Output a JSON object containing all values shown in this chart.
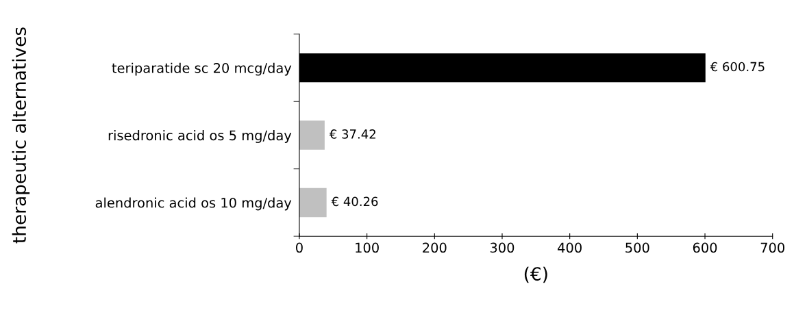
{
  "chart_data": {
    "type": "bar",
    "orientation": "horizontal",
    "xlabel": "(€)",
    "ylabel": "therapeutic alternatives",
    "categories": [
      "teriparatide sc 20 mcg/day",
      "risedronic acid os 5 mg/day",
      "alendronic acid os 10 mg/day"
    ],
    "values": [
      600.75,
      37.42,
      40.26
    ],
    "colors": [
      "#000000",
      "#c0c0c0",
      "#c0c0c0"
    ],
    "value_labels": [
      "€ 600.75",
      "€ 37.42",
      "€ 40.26"
    ],
    "xlim": [
      0,
      700
    ],
    "xticks": [
      0,
      100,
      200,
      300,
      400,
      500,
      600,
      700
    ],
    "grid": false
  }
}
